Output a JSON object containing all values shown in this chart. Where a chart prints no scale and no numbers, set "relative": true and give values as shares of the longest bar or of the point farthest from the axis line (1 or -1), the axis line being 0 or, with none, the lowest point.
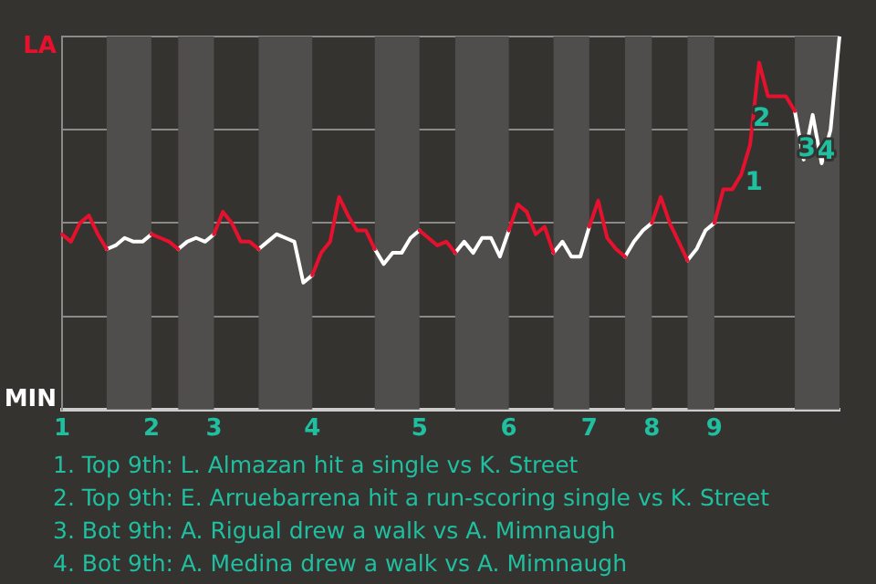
{
  "chart_data": {
    "type": "line",
    "marker": "none",
    "grid": "y",
    "relative": true,
    "categories": [
      "1",
      null,
      null,
      null,
      null,
      null,
      null,
      null,
      null,
      null,
      "2",
      null,
      null,
      null,
      null,
      null,
      null,
      "3",
      null,
      null,
      null,
      null,
      null,
      null,
      null,
      null,
      null,
      null,
      "4",
      null,
      null,
      null,
      null,
      null,
      null,
      null,
      null,
      null,
      null,
      null,
      "5",
      null,
      null,
      null,
      null,
      null,
      null,
      null,
      null,
      null,
      "6",
      null,
      null,
      null,
      null,
      null,
      null,
      null,
      null,
      "7",
      null,
      null,
      null,
      null,
      null,
      null,
      "8",
      null,
      null,
      null,
      null,
      null,
      null,
      "9",
      null,
      null,
      null,
      null,
      null,
      null,
      null,
      null,
      null,
      null,
      null,
      null,
      null,
      null
    ],
    "series": [
      {
        "color": "#e8112d",
        "values": [
          0.47,
          0.45,
          0.5,
          0.52,
          0.47,
          0.43,
          null,
          null,
          null,
          null,
          0.47,
          0.46,
          0.45,
          0.43,
          null,
          null,
          null,
          0.47,
          0.53,
          0.5,
          0.45,
          0.45,
          0.43,
          null,
          null,
          null,
          null,
          null,
          0.36,
          0.42,
          0.45,
          0.57,
          0.52,
          0.48,
          0.48,
          0.43,
          null,
          null,
          null,
          null,
          0.48,
          0.46,
          0.44,
          0.45,
          0.42,
          null,
          null,
          null,
          null,
          null,
          0.48,
          0.55,
          0.53,
          0.47,
          0.49,
          0.42,
          null,
          null,
          null,
          0.49,
          0.56,
          0.46,
          0.43,
          0.41,
          null,
          null,
          0.5,
          0.57,
          0.5,
          0.45,
          0.4,
          null,
          null,
          0.5,
          0.59,
          0.59,
          0.63,
          0.71,
          0.93,
          0.84,
          0.84,
          0.84,
          0.8,
          null,
          null,
          null,
          null,
          null
        ]
      },
      {
        "color": "#ffffff",
        "values": [
          null,
          null,
          null,
          null,
          null,
          0.43,
          0.44,
          0.46,
          0.45,
          0.45,
          0.47,
          null,
          null,
          0.43,
          0.45,
          0.46,
          0.45,
          0.47,
          null,
          null,
          null,
          null,
          0.43,
          0.45,
          0.47,
          0.46,
          0.45,
          0.34,
          0.36,
          null,
          null,
          null,
          null,
          null,
          null,
          0.43,
          0.39,
          0.42,
          0.42,
          0.46,
          0.48,
          null,
          null,
          null,
          0.42,
          0.45,
          0.42,
          0.46,
          0.46,
          0.41,
          0.48,
          null,
          null,
          null,
          null,
          0.42,
          0.45,
          0.41,
          0.41,
          0.49,
          null,
          null,
          null,
          0.41,
          0.45,
          0.48,
          0.5,
          null,
          null,
          null,
          0.4,
          0.43,
          0.48,
          0.5,
          null,
          null,
          null,
          null,
          null,
          null,
          null,
          null,
          0.8,
          0.67,
          0.79,
          0.66,
          0.75,
          1.0
        ]
      }
    ],
    "annotations": [
      "LA",
      "MIN",
      "1",
      "2",
      "3",
      "4",
      "1. Top 9th: L. Almazan hit a single vs K. Street",
      "2. Top 9th: E. Arruebarrena hit a run-scoring single vs K. Street",
      "3. Bot 9th: A. Rigual drew a walk vs A. Mimnaugh",
      "4. Bot 9th: A. Medina drew a walk vs A. Mimnaugh"
    ]
  }
}
